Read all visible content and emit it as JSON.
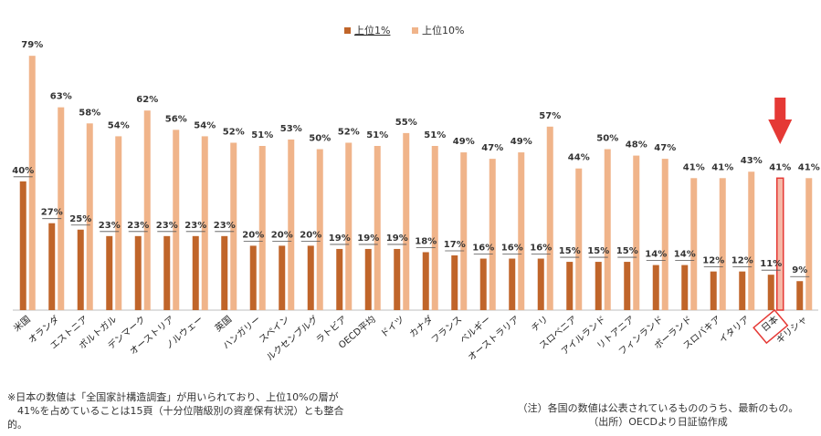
{
  "colors": {
    "top1": "#c0652a",
    "top10": "#f0b48a",
    "highlight": "#e53935",
    "axis": "#bfbfbf"
  },
  "chart_data": {
    "type": "bar",
    "categories": [
      "米国",
      "オランダ",
      "エストニア",
      "ポルトガル",
      "デンマーク",
      "オーストリア",
      "ノルウェー",
      "英国",
      "ハンガリー",
      "スペイン",
      "ルクセンブルグ",
      "ラトビア",
      "OECD平均",
      "ドイツ",
      "カナダ",
      "フランス",
      "ベルギー",
      "オーストラリア",
      "チリ",
      "スロベニア",
      "アイルランド",
      "リトアニア",
      "フィンランド",
      "ポーランド",
      "スロバキア",
      "イタリア",
      "日本",
      "ギリシャ"
    ],
    "series": [
      {
        "name": "上位1%",
        "values": [
          40,
          27,
          25,
          23,
          23,
          23,
          23,
          23,
          20,
          20,
          20,
          19,
          19,
          19,
          18,
          17,
          16,
          16,
          16,
          15,
          15,
          15,
          14,
          14,
          12,
          12,
          11,
          9
        ]
      },
      {
        "name": "上位10%",
        "values": [
          79,
          63,
          58,
          54,
          62,
          56,
          54,
          52,
          51,
          53,
          50,
          52,
          51,
          55,
          51,
          49,
          47,
          49,
          57,
          44,
          50,
          48,
          47,
          41,
          41,
          43,
          41,
          41
        ]
      }
    ],
    "ylim": [
      0,
      85
    ],
    "value_suffix": "%",
    "legend_position": "top-center",
    "grid": false,
    "highlight_category": "日本",
    "annotation": "red down arrow pointing at 日本"
  },
  "notes": {
    "left": "※日本の数値は「全国家計構造調査」が用いられており、上位10%の層が\n　41%を占めていることは15頁（十分位階級別の資産保有状況）とも整合\n的。",
    "right": "（注）各国の数値は公表されているもののうち、最新のもの。\n（出所）OECDより日証協作成"
  }
}
